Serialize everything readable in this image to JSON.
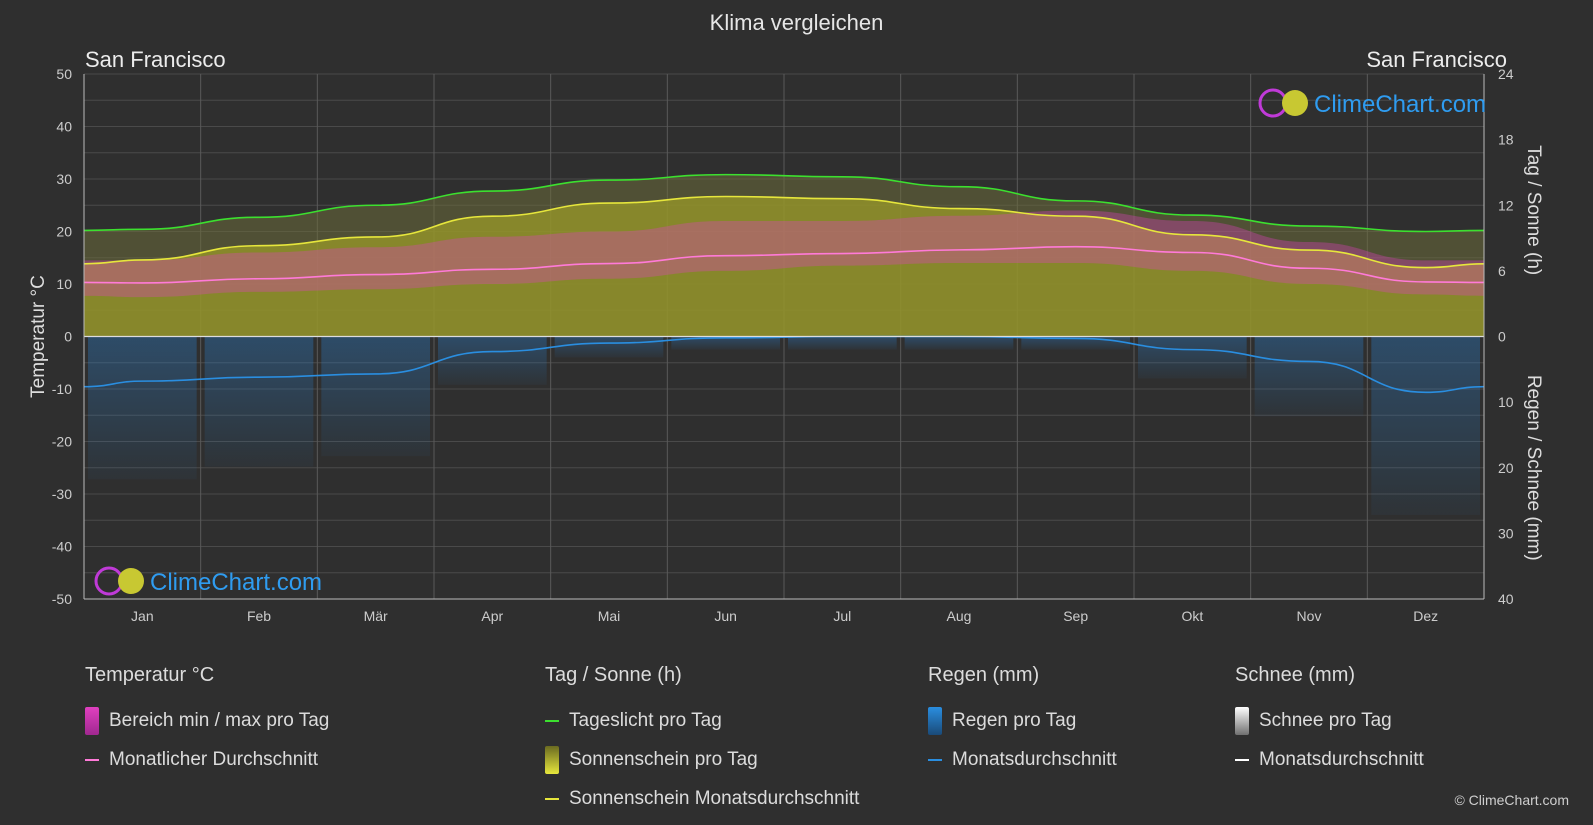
{
  "header": {
    "title": "Klima vergleichen",
    "location_left": "San Francisco",
    "location_right": "San Francisco"
  },
  "watermark": {
    "text": "ClimeChart.com",
    "copyright": "© ClimeChart.com"
  },
  "colors": {
    "background": "#2f2f2f",
    "daylight": "#3ce02f",
    "sunshine_avg": "#e6e63c",
    "sunshine_fill": "#9a9a28",
    "temp_range": "#e040c0",
    "temp_avg": "#ff7ad8",
    "rain": "#2a82d2",
    "rain_avg": "#2a8ee0",
    "snow": "#ffffff",
    "brand": "#2f9cf0"
  },
  "chart_data": {
    "type": "line",
    "months": [
      "Jan",
      "Feb",
      "Mär",
      "Apr",
      "Mai",
      "Jun",
      "Jul",
      "Aug",
      "Sep",
      "Okt",
      "Nov",
      "Dez"
    ],
    "axes": {
      "left": {
        "label": "Temperatur °C",
        "min": -50,
        "max": 50,
        "ticks": [
          50,
          40,
          30,
          20,
          10,
          0,
          -10,
          -20,
          -30,
          -40,
          -50
        ]
      },
      "right_top": {
        "label": "Tag / Sonne (h)",
        "min": 0,
        "max": 24,
        "ticks": [
          24,
          18,
          12,
          6,
          0
        ]
      },
      "right_bottom": {
        "label": "Regen / Schnee (mm)",
        "min": 0,
        "max": 40,
        "ticks": [
          0,
          10,
          20,
          30,
          40
        ]
      }
    },
    "series": [
      {
        "name": "Tageslicht pro Tag",
        "unit": "h",
        "values": [
          9.8,
          10.9,
          12.0,
          13.3,
          14.3,
          14.8,
          14.6,
          13.7,
          12.4,
          11.1,
          10.1,
          9.6
        ]
      },
      {
        "name": "Sonnenschein Monatsdurchschnitt",
        "unit": "h",
        "values": [
          7.0,
          8.3,
          9.1,
          11.0,
          12.2,
          12.8,
          12.6,
          11.7,
          11.0,
          9.3,
          7.9,
          6.3
        ]
      },
      {
        "name": "Monatlicher Durchschnitt",
        "unit": "°C",
        "values": [
          10.2,
          11.0,
          11.8,
          12.8,
          13.9,
          15.4,
          15.8,
          16.5,
          17.1,
          16.0,
          13.0,
          10.4
        ]
      },
      {
        "name": "Monatsdurchschnitt",
        "unit": "mm",
        "values": [
          6.8,
          6.2,
          5.7,
          2.3,
          1.0,
          0.2,
          0.0,
          0.0,
          0.3,
          2.0,
          3.8,
          8.5
        ]
      }
    ],
    "temp_range": {
      "min": [
        7.5,
        8.5,
        9.0,
        10.0,
        11.0,
        12.5,
        13.5,
        14.0,
        14.0,
        12.5,
        10.0,
        8.0
      ],
      "max": [
        14.5,
        16.0,
        17.0,
        19.0,
        20.0,
        22.0,
        22.0,
        23.0,
        24.0,
        22.0,
        18.0,
        14.5
      ]
    }
  },
  "legend": {
    "groups": [
      {
        "header": "Temperatur °C",
        "items": [
          {
            "label": "Bereich min / max pro Tag",
            "swatch": "box",
            "color": "#e040c0"
          },
          {
            "label": "Monatlicher Durchschnitt",
            "swatch": "line",
            "color": "#ff7ad8"
          }
        ]
      },
      {
        "header": "Tag / Sonne (h)",
        "items": [
          {
            "label": "Tageslicht pro Tag",
            "swatch": "line",
            "color": "#3ce02f"
          },
          {
            "label": "Sonnenschein pro Tag",
            "swatch": "box",
            "color": "#c8c832"
          },
          {
            "label": "Sonnenschein Monatsdurchschnitt",
            "swatch": "line",
            "color": "#e6e63c"
          }
        ]
      },
      {
        "header": "Regen (mm)",
        "items": [
          {
            "label": "Regen pro Tag",
            "swatch": "box",
            "color": "#2a82d2"
          },
          {
            "label": "Monatsdurchschnitt",
            "swatch": "line",
            "color": "#2a8ee0"
          }
        ]
      },
      {
        "header": "Schnee (mm)",
        "items": [
          {
            "label": "Schnee pro Tag",
            "swatch": "box",
            "color": "#d8d8d8"
          },
          {
            "label": "Monatsdurchschnitt",
            "swatch": "line",
            "color": "#ffffff"
          }
        ]
      }
    ]
  }
}
